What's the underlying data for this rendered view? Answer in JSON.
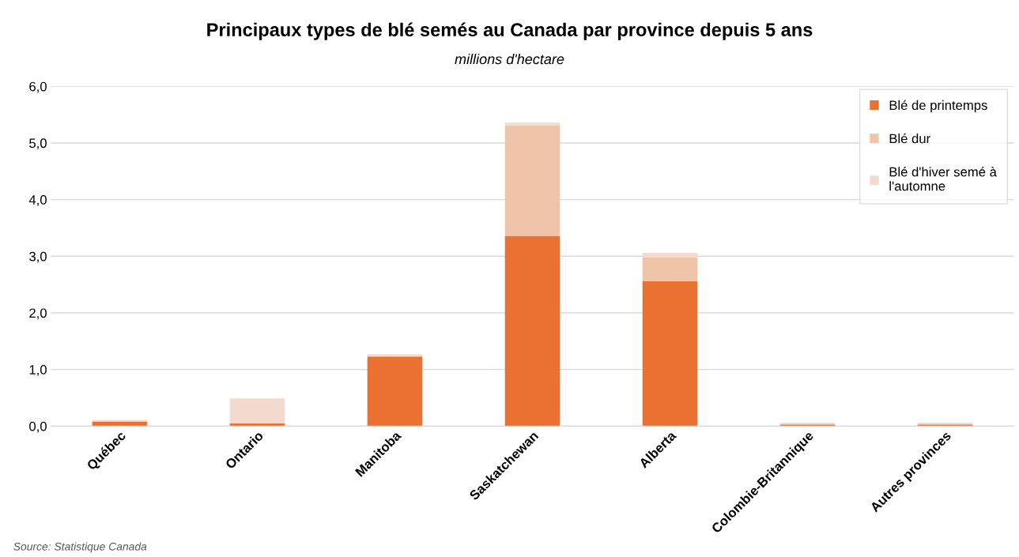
{
  "chart_data": {
    "type": "bar",
    "title": "Principaux types de blé semés au Canada par province depuis 5 ans",
    "subtitle": "millions d'hectare",
    "stacked": true,
    "categories": [
      "Québec",
      "Ontario",
      "Manitoba",
      "Saskatchewan",
      "Alberta",
      "Colombie-Britannique",
      "Autres provinces"
    ],
    "series": [
      {
        "name": "Blé de printemps",
        "color": "#ea7130",
        "values": [
          0.08,
          0.05,
          1.23,
          3.36,
          2.56,
          0.03,
          0.03
        ]
      },
      {
        "name": "Blé dur",
        "color": "#f0c4a9",
        "values": [
          0,
          0,
          0,
          1.95,
          0.42,
          0,
          0
        ]
      },
      {
        "name": "Blé d'hiver semé à l'automne",
        "color": "#f5dbcf",
        "values": [
          0.03,
          0.44,
          0.04,
          0.05,
          0.08,
          0.03,
          0.03
        ]
      }
    ],
    "ylim": [
      0,
      6
    ],
    "yticks": [
      {
        "value": 0,
        "label": "0,0"
      },
      {
        "value": 1,
        "label": "1,0"
      },
      {
        "value": 2,
        "label": "2,0"
      },
      {
        "value": 3,
        "label": "3,0"
      },
      {
        "value": 4,
        "label": "4,0"
      },
      {
        "value": 5,
        "label": "5,0"
      },
      {
        "value": 6,
        "label": "6,0"
      }
    ],
    "grid": "y",
    "legend": "top right",
    "annotations": [
      "Source: Statistique Canada"
    ]
  }
}
